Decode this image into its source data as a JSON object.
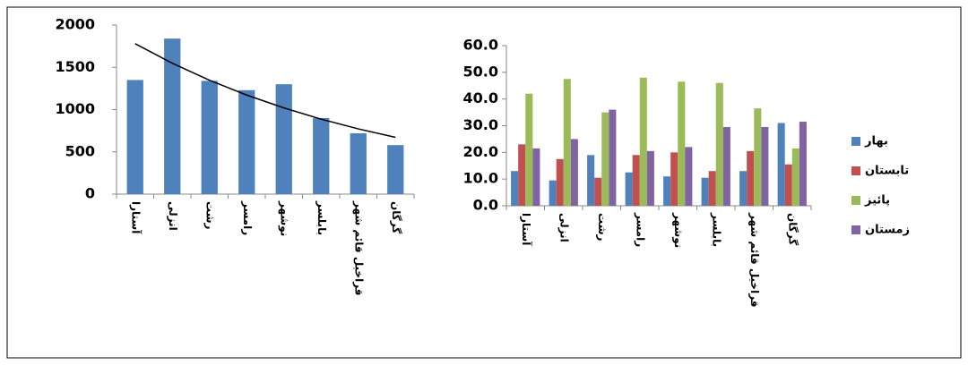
{
  "chart_data": [
    {
      "type": "bar",
      "categories": [
        "آستارا",
        "انزلی",
        "رشت",
        "رامسر",
        "نوشهر",
        "بابلسر",
        "قراخیل قائم شهر",
        "گرگان"
      ],
      "values": [
        1350,
        1840,
        1340,
        1230,
        1300,
        900,
        720,
        580
      ],
      "color": "#4f81bd",
      "trendline": [
        1780,
        1548,
        1347,
        1172,
        1020,
        887,
        772,
        672
      ],
      "trendline_color": "#000000",
      "ylim": [
        0,
        2000
      ],
      "yticks": [
        0,
        500,
        1000,
        1500,
        2000
      ],
      "grid": false
    },
    {
      "type": "grouped_bar",
      "categories": [
        "آستارا",
        "انزلی",
        "رشت",
        "رامسر",
        "نوشهر",
        "بابلسر",
        "قراخیل قائم شهر",
        "گرگان"
      ],
      "series": [
        {
          "name": "بهار",
          "color": "#4f81bd",
          "values": [
            13,
            9.5,
            19,
            12.5,
            11,
            10.5,
            13,
            31
          ]
        },
        {
          "name": "تابستان",
          "color": "#c0504d",
          "values": [
            23,
            17.5,
            10.5,
            19,
            20,
            13,
            20.5,
            15.5
          ]
        },
        {
          "name": "پائیز",
          "color": "#9bbb59",
          "values": [
            42,
            47.5,
            35,
            48,
            46.5,
            46,
            36.5,
            21.5
          ]
        },
        {
          "name": "زمستان",
          "color": "#8064a2",
          "values": [
            21.5,
            25,
            36,
            20.5,
            22,
            29.5,
            29.5,
            31.5
          ]
        }
      ],
      "ylim": [
        0,
        60
      ],
      "yticks": [
        {
          "value": 0,
          "label": "0.0"
        },
        {
          "value": 10,
          "label": "10.0"
        },
        {
          "value": 20,
          "label": "20.0"
        },
        {
          "value": 30,
          "label": "30.0"
        },
        {
          "value": 40,
          "label": "40.0"
        },
        {
          "value": 50,
          "label": "50.0"
        },
        {
          "value": 60,
          "label": "60.0"
        }
      ],
      "legend": "right",
      "grid": false
    }
  ]
}
